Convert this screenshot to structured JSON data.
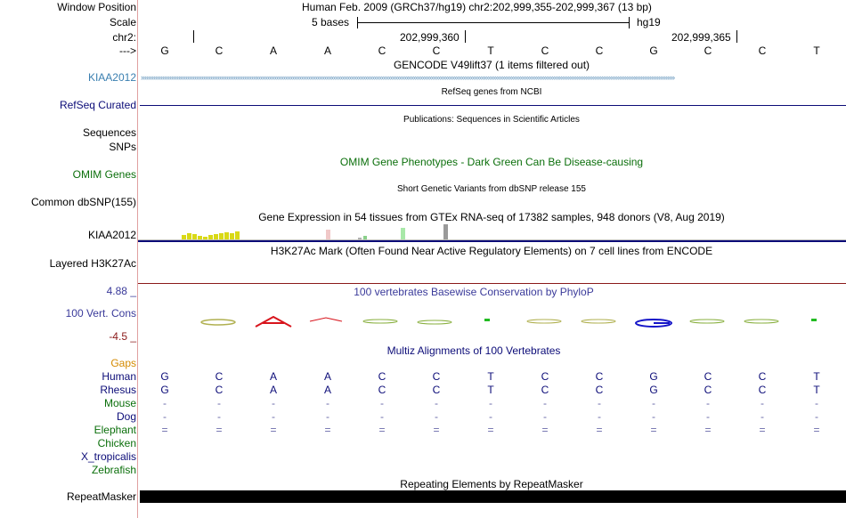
{
  "header": {
    "window_position_label": "Window Position",
    "window_position_value": "Human Feb. 2009 (GRCh37/hg19)   chr2:202,999,355-202,999,367 (13 bp)",
    "scale_label": "Scale",
    "scale_value": "5 bases",
    "scale_db": "hg19",
    "chr_label": "chr2:",
    "coord_1": "202,999,360",
    "coord_2": "202,999,365",
    "strand_label": "--->"
  },
  "sequence": [
    "G",
    "C",
    "A",
    "A",
    "C",
    "C",
    "T",
    "C",
    "C",
    "G",
    "C",
    "C",
    "T"
  ],
  "tracks": {
    "gencode": {
      "label": "KIAA2012",
      "title": "GENCODE V49lift37 (1 items filtered out)",
      "color": "#3a7fb0"
    },
    "refseq": {
      "label": "RefSeq Curated",
      "title": "RefSeq genes from NCBI",
      "color": "#0c0c78"
    },
    "publications": {
      "label_1": "Sequences",
      "label_2": "SNPs",
      "title": "Publications: Sequences in Scientific Articles"
    },
    "omim": {
      "label": "OMIM Genes",
      "title": "OMIM Gene Phenotypes - Dark Green Can Be Disease-causing",
      "color": "#0b6f0b"
    },
    "dbsnp": {
      "label": "Common dbSNP(155)",
      "title": "Short Genetic Variants from dbSNP release 155"
    },
    "gtex": {
      "label": "KIAA2012",
      "title": "Gene Expression in 54 tissues from GTEx RNA-seq of 17382 samples, 948 donors (V8, Aug 2019)"
    },
    "h3k27ac": {
      "label": "Layered H3K27Ac",
      "title": "H3K27Ac Mark (Often Found Near Active Regulatory Elements) on 7 cell lines from ENCODE"
    },
    "phylop": {
      "label": "100 Vert. Cons",
      "max": "4.88 _",
      "min": "-4.5 _",
      "title": "100 vertebrates Basewise Conservation by PhyloP",
      "color": "#3a3a9a"
    },
    "multiz": {
      "title": "Multiz Alignments of 100 Vertebrates",
      "gaps_label": "Gaps",
      "species": [
        {
          "name": "Human",
          "color": "#0c0c78"
        },
        {
          "name": "Rhesus",
          "color": "#0c0c78"
        },
        {
          "name": "Mouse",
          "color": "#0b6f0b"
        },
        {
          "name": "Dog",
          "color": "#0c0c78"
        },
        {
          "name": "Elephant",
          "color": "#0b6f0b"
        },
        {
          "name": "Chicken",
          "color": "#0b6f0b"
        },
        {
          "name": "X_tropicalis",
          "color": "#0c0c78"
        },
        {
          "name": "Zebrafish",
          "color": "#0b6f0b"
        }
      ],
      "rhesus_bases": [
        "G",
        "C",
        "A",
        "A",
        "C",
        "C",
        "T",
        "C",
        "C",
        "G",
        "C",
        "C",
        "T"
      ],
      "mouse_symbol": "-",
      "dog_symbol": "-",
      "elephant_symbol": "="
    },
    "repeatmasker": {
      "label": "RepeatMasker",
      "title": "Repeating Elements by RepeatMasker"
    }
  }
}
